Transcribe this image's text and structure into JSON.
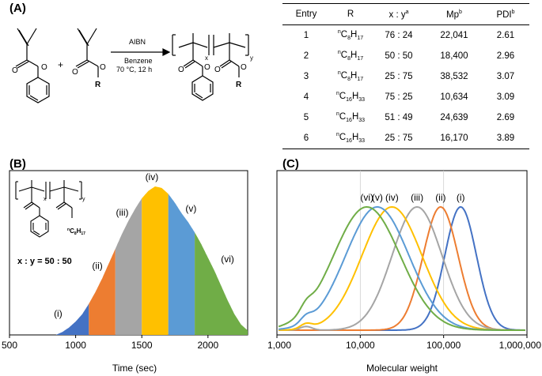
{
  "panel_a": {
    "label": "(A)",
    "reaction": {
      "catalyst": "AIBN",
      "solvent": "Benzene",
      "conditions": "70 °C, 12 h",
      "plus": "+",
      "r_group": "R",
      "sub_x": "x",
      "sub_y": "y"
    },
    "table": {
      "headers": [
        "Entry",
        "R",
        "x : y",
        "Mp",
        "PDI"
      ],
      "header_sups": [
        "",
        "",
        "a",
        "b",
        "b"
      ],
      "rows": [
        {
          "entry": "1",
          "r_sup": "n",
          "r_base": "C",
          "r_sub1": "8",
          "r_h": "H",
          "r_sub2": "17",
          "ratio": "76 : 24",
          "mp": "22,041",
          "pdi": "2.61"
        },
        {
          "entry": "2",
          "r_sup": "n",
          "r_base": "C",
          "r_sub1": "8",
          "r_h": "H",
          "r_sub2": "17",
          "ratio": "50 : 50",
          "mp": "18,400",
          "pdi": "2.96"
        },
        {
          "entry": "3",
          "r_sup": "n",
          "r_base": "C",
          "r_sub1": "8",
          "r_h": "H",
          "r_sub2": "17",
          "ratio": "25 : 75",
          "mp": "38,532",
          "pdi": "3.07"
        },
        {
          "entry": "4",
          "r_sup": "n",
          "r_base": "C",
          "r_sub1": "16",
          "r_h": "H",
          "r_sub2": "33",
          "ratio": "75 : 25",
          "mp": "10,634",
          "pdi": "3.09"
        },
        {
          "entry": "5",
          "r_sup": "n",
          "r_base": "C",
          "r_sub1": "16",
          "r_h": "H",
          "r_sub2": "33",
          "ratio": "51 : 49",
          "mp": "24,639",
          "pdi": "2.69"
        },
        {
          "entry": "6",
          "r_sup": "n",
          "r_base": "C",
          "r_sub1": "16",
          "r_h": "H",
          "r_sub2": "33",
          "ratio": "25 : 75",
          "mp": "16,170",
          "pdi": "3.89"
        }
      ]
    }
  },
  "panel_b": {
    "label": "(B)",
    "polymer_ratio": "x : y = 50 : 50",
    "sub_x": "x",
    "sub_y": "y",
    "chain_label_sup": "n",
    "chain_label_base": "C",
    "chain_label_sub1": "8",
    "chain_label_h": "H",
    "chain_label_sub2": "17"
  },
  "panel_c": {
    "label": "(C)"
  },
  "colors": {
    "i": "#4472c4",
    "ii": "#ed7d31",
    "iii": "#a5a5a5",
    "iv": "#ffc000",
    "v": "#5b9bd5",
    "vi": "#70ad47"
  },
  "chart_data": [
    {
      "type": "area",
      "xlabel": "Time (sec)",
      "ylabel": "",
      "xlim": [
        500,
        2300
      ],
      "x_ticks": [
        "500",
        "1000",
        "1500",
        "2000"
      ],
      "x_tick_values": [
        500,
        1000,
        1500,
        2000
      ],
      "curve": {
        "x": [
          850,
          900,
          950,
          1000,
          1050,
          1100,
          1150,
          1200,
          1250,
          1300,
          1350,
          1400,
          1450,
          1500,
          1550,
          1600,
          1650,
          1700,
          1750,
          1800,
          1850,
          1900,
          1950,
          2000,
          2050,
          2100,
          2150,
          2200,
          2250,
          2300
        ],
        "y": [
          0.0,
          0.02,
          0.05,
          0.09,
          0.14,
          0.21,
          0.29,
          0.38,
          0.48,
          0.58,
          0.68,
          0.77,
          0.85,
          0.92,
          0.97,
          1.0,
          0.99,
          0.95,
          0.89,
          0.82,
          0.76,
          0.69,
          0.61,
          0.52,
          0.43,
          0.33,
          0.23,
          0.14,
          0.07,
          0.03
        ]
      },
      "fractions": [
        {
          "name": "(i)",
          "from": 850,
          "to": 1100,
          "color": "#4472c4"
        },
        {
          "name": "(ii)",
          "from": 1100,
          "to": 1300,
          "color": "#ed7d31"
        },
        {
          "name": "(iii)",
          "from": 1300,
          "to": 1500,
          "color": "#a5a5a5"
        },
        {
          "name": "(iv)",
          "from": 1500,
          "to": 1700,
          "color": "#ffc000"
        },
        {
          "name": "(v)",
          "from": 1700,
          "to": 1900,
          "color": "#5b9bd5"
        },
        {
          "name": "(vi)",
          "from": 1900,
          "to": 2300,
          "color": "#70ad47"
        }
      ]
    },
    {
      "type": "line",
      "xlabel": "Molecular weight",
      "ylabel": "",
      "xscale": "log",
      "xlim": [
        1000,
        1000000
      ],
      "x_ticks": [
        "1,000",
        "10,000",
        "100,000",
        "1,000,000"
      ],
      "x_tick_values": [
        1000,
        10000,
        100000,
        1000000
      ],
      "grid": "vertical",
      "series": [
        {
          "name": "(i)",
          "color": "#4472c4",
          "peak": 160000,
          "width": 0.19,
          "baseline_bump": 0.0
        },
        {
          "name": "(ii)",
          "color": "#ed7d31",
          "peak": 92000,
          "width": 0.21,
          "baseline_bump": 0.0
        },
        {
          "name": "(iii)",
          "color": "#a5a5a5",
          "peak": 48000,
          "width": 0.3,
          "baseline_bump": 0.03
        },
        {
          "name": "(iv)",
          "color": "#ffc000",
          "peak": 24000,
          "width": 0.36,
          "baseline_bump": 0.04
        },
        {
          "name": "(v)",
          "color": "#5b9bd5",
          "peak": 16000,
          "width": 0.38,
          "baseline_bump": 0.05
        },
        {
          "name": "(vi)",
          "color": "#70ad47",
          "peak": 12000,
          "width": 0.4,
          "baseline_bump": 0.06
        }
      ]
    }
  ]
}
